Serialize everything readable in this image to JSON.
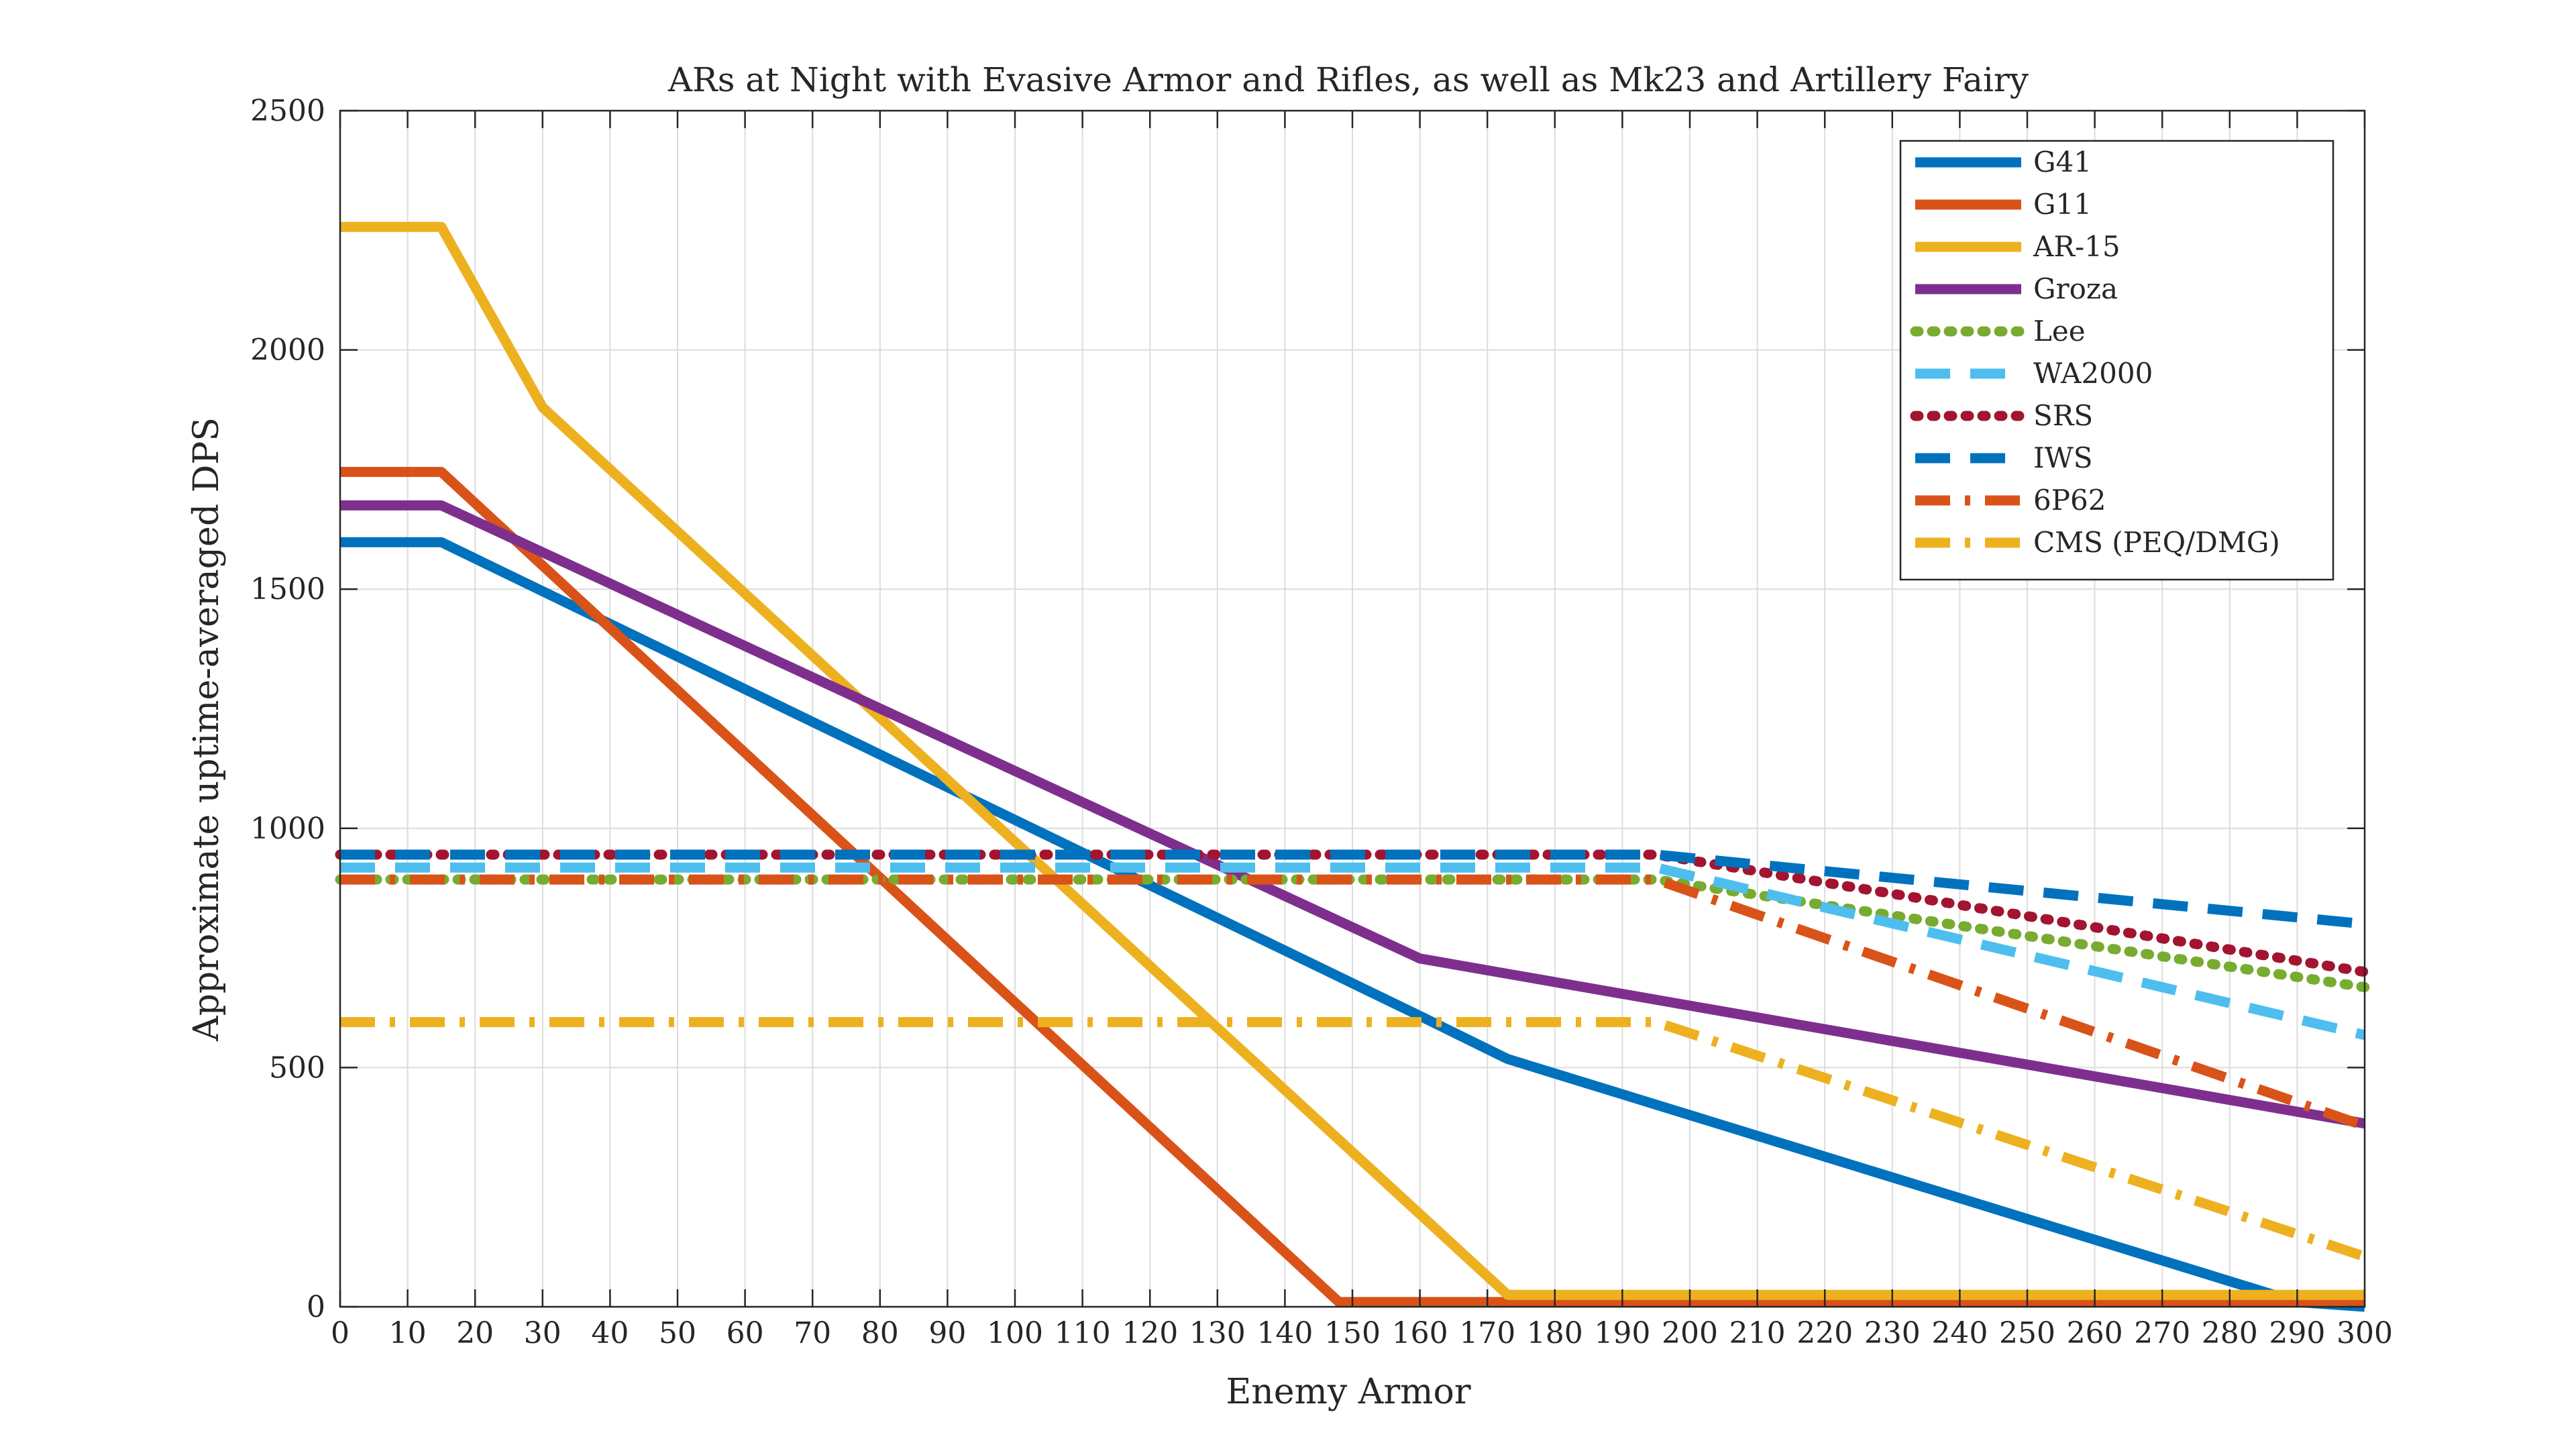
{
  "chart_data": {
    "type": "line",
    "title": "ARs at Night with Evasive Armor and Rifles, as well as Mk23 and Artillery Fairy",
    "xlabel": "Enemy Armor",
    "ylabel": "Approximate uptime-averaged DPS",
    "xlim": [
      0,
      300
    ],
    "ylim": [
      0,
      2500
    ],
    "xticks": [
      0,
      10,
      20,
      30,
      40,
      50,
      60,
      70,
      80,
      90,
      100,
      110,
      120,
      130,
      140,
      150,
      160,
      170,
      180,
      190,
      200,
      210,
      220,
      230,
      240,
      250,
      260,
      270,
      280,
      290,
      300
    ],
    "yticks": [
      0,
      500,
      1000,
      1500,
      2000,
      2500
    ],
    "grid": true,
    "legend_position": "top-right",
    "series": [
      {
        "name": "G41",
        "color": "#0072BD",
        "style": "solid",
        "points": [
          [
            0,
            1598
          ],
          [
            15,
            1598
          ],
          [
            160,
            608
          ],
          [
            173,
            518
          ],
          [
            290,
            10
          ],
          [
            300,
            0
          ]
        ]
      },
      {
        "name": "G11",
        "color": "#D95319",
        "style": "solid",
        "points": [
          [
            0,
            1745
          ],
          [
            15,
            1745
          ],
          [
            148,
            10
          ],
          [
            300,
            10
          ]
        ]
      },
      {
        "name": "AR-15",
        "color": "#EDB120",
        "style": "solid",
        "points": [
          [
            0,
            2257
          ],
          [
            15,
            2257
          ],
          [
            30,
            1880
          ],
          [
            173,
            25
          ],
          [
            300,
            25
          ]
        ]
      },
      {
        "name": "Groza",
        "color": "#7E2F8E",
        "style": "solid",
        "points": [
          [
            0,
            1675
          ],
          [
            15,
            1675
          ],
          [
            160,
            728
          ],
          [
            300,
            383
          ]
        ]
      },
      {
        "name": "Lee",
        "color": "#77AC30",
        "style": "dotted",
        "points": [
          [
            0,
            893
          ],
          [
            195,
            893
          ],
          [
            300,
            668
          ]
        ]
      },
      {
        "name": "WA2000",
        "color": "#4DBEEE",
        "style": "dashed",
        "points": [
          [
            0,
            918
          ],
          [
            195,
            918
          ],
          [
            300,
            568
          ]
        ]
      },
      {
        "name": "SRS",
        "color": "#A2142F",
        "style": "dotted",
        "points": [
          [
            0,
            945
          ],
          [
            195,
            945
          ],
          [
            300,
            700
          ]
        ]
      },
      {
        "name": "IWS",
        "color": "#0072BD",
        "style": "dashed",
        "points": [
          [
            0,
            945
          ],
          [
            195,
            945
          ],
          [
            300,
            800
          ]
        ]
      },
      {
        "name": "6P62",
        "color": "#D95319",
        "style": "dashdot",
        "points": [
          [
            0,
            893
          ],
          [
            195,
            893
          ],
          [
            300,
            378
          ]
        ]
      },
      {
        "name": "CMS (PEQ/DMG)",
        "color": "#EDB120",
        "style": "dashdot",
        "points": [
          [
            0,
            595
          ],
          [
            195,
            595
          ],
          [
            300,
            105
          ]
        ]
      }
    ]
  }
}
